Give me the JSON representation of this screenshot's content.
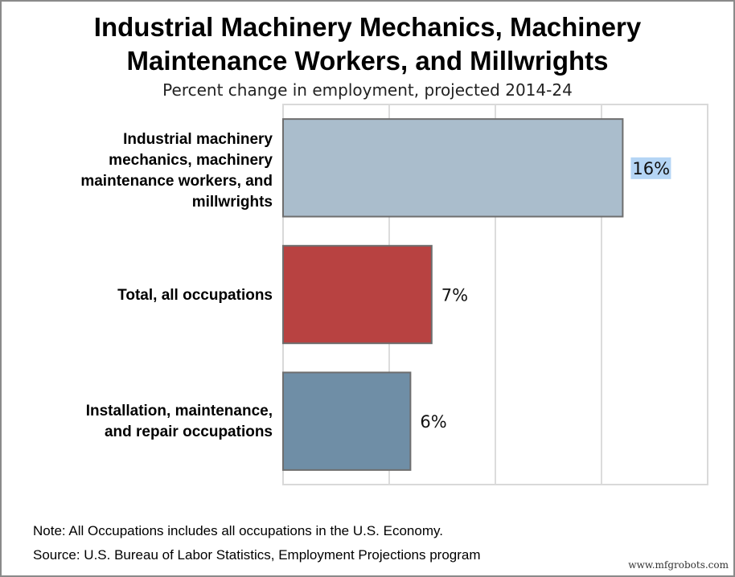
{
  "chart_data": {
    "type": "bar",
    "orientation": "horizontal",
    "title": "Industrial Machinery Mechanics, Machinery Maintenance Workers, and Millwrights",
    "title_lines": [
      "Industrial Machinery Mechanics, Machinery",
      "Maintenance Workers, and Millwrights"
    ],
    "subtitle": "Percent change in employment, projected 2014-24",
    "categories": [
      [
        "Industrial machinery",
        "mechanics, machinery",
        "maintenance workers, and",
        "millwrights"
      ],
      [
        "Total, all occupations"
      ],
      [
        "Installation, maintenance,",
        "and repair occupations"
      ]
    ],
    "values": [
      16,
      7,
      6
    ],
    "data_labels": [
      "16%",
      "7%",
      "6%"
    ],
    "colors": [
      "#aabdcc",
      "#b84241",
      "#6f8ea6"
    ],
    "xlim": [
      0,
      20
    ],
    "grid_step": 5,
    "grid": true,
    "xlabel": "",
    "ylabel": ""
  },
  "notes": {
    "note": "Note: All Occupations includes all occupations in the U.S. Economy.",
    "source": "Source: U.S. Bureau of Labor Statistics, Employment Projections program"
  },
  "watermark": "www.mfgrobots.com"
}
